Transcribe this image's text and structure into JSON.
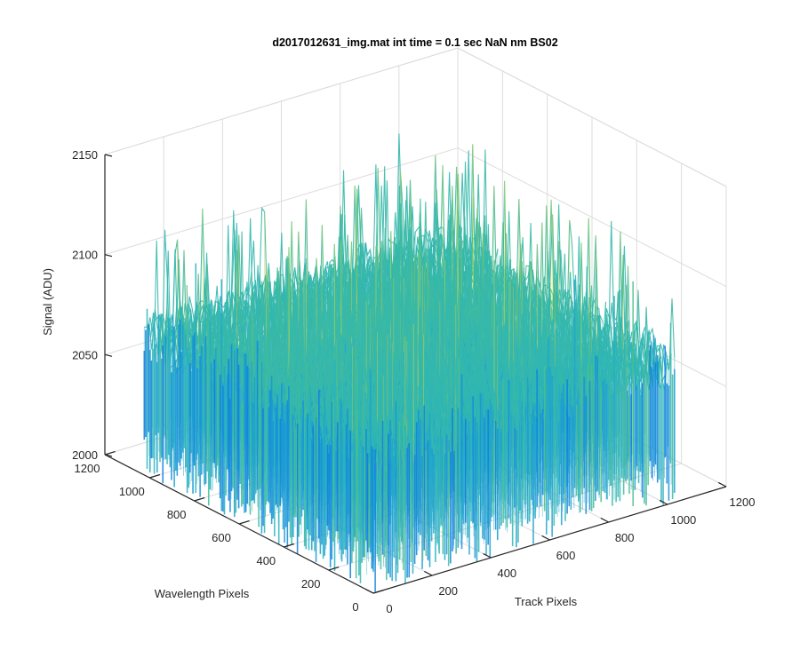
{
  "chart_data": {
    "type": "surface",
    "title": "d2017012631_img.mat int time = 0.1 sec  NaN nm BS02",
    "xlabel": "Track Pixels",
    "ylabel": "Wavelength Pixels",
    "zlabel": "Signal (ADU)",
    "xlim": [
      0,
      1200
    ],
    "ylim": [
      0,
      1200
    ],
    "zlim": [
      2000,
      2150
    ],
    "xticks": [
      "0",
      "200",
      "400",
      "600",
      "800",
      "1000",
      "1200"
    ],
    "yticks": [
      "0",
      "200",
      "400",
      "600",
      "800",
      "1000",
      "1200"
    ],
    "zticks": [
      "2000",
      "2050",
      "2100",
      "2150"
    ],
    "x_extent": [
      0,
      1024
    ],
    "y_extent": [
      0,
      1024
    ],
    "z_floor_approx": 2035,
    "z_typical_approx": 2070,
    "z_peak_approx": 2130,
    "colormap": "parula",
    "grid": true,
    "box": true
  }
}
